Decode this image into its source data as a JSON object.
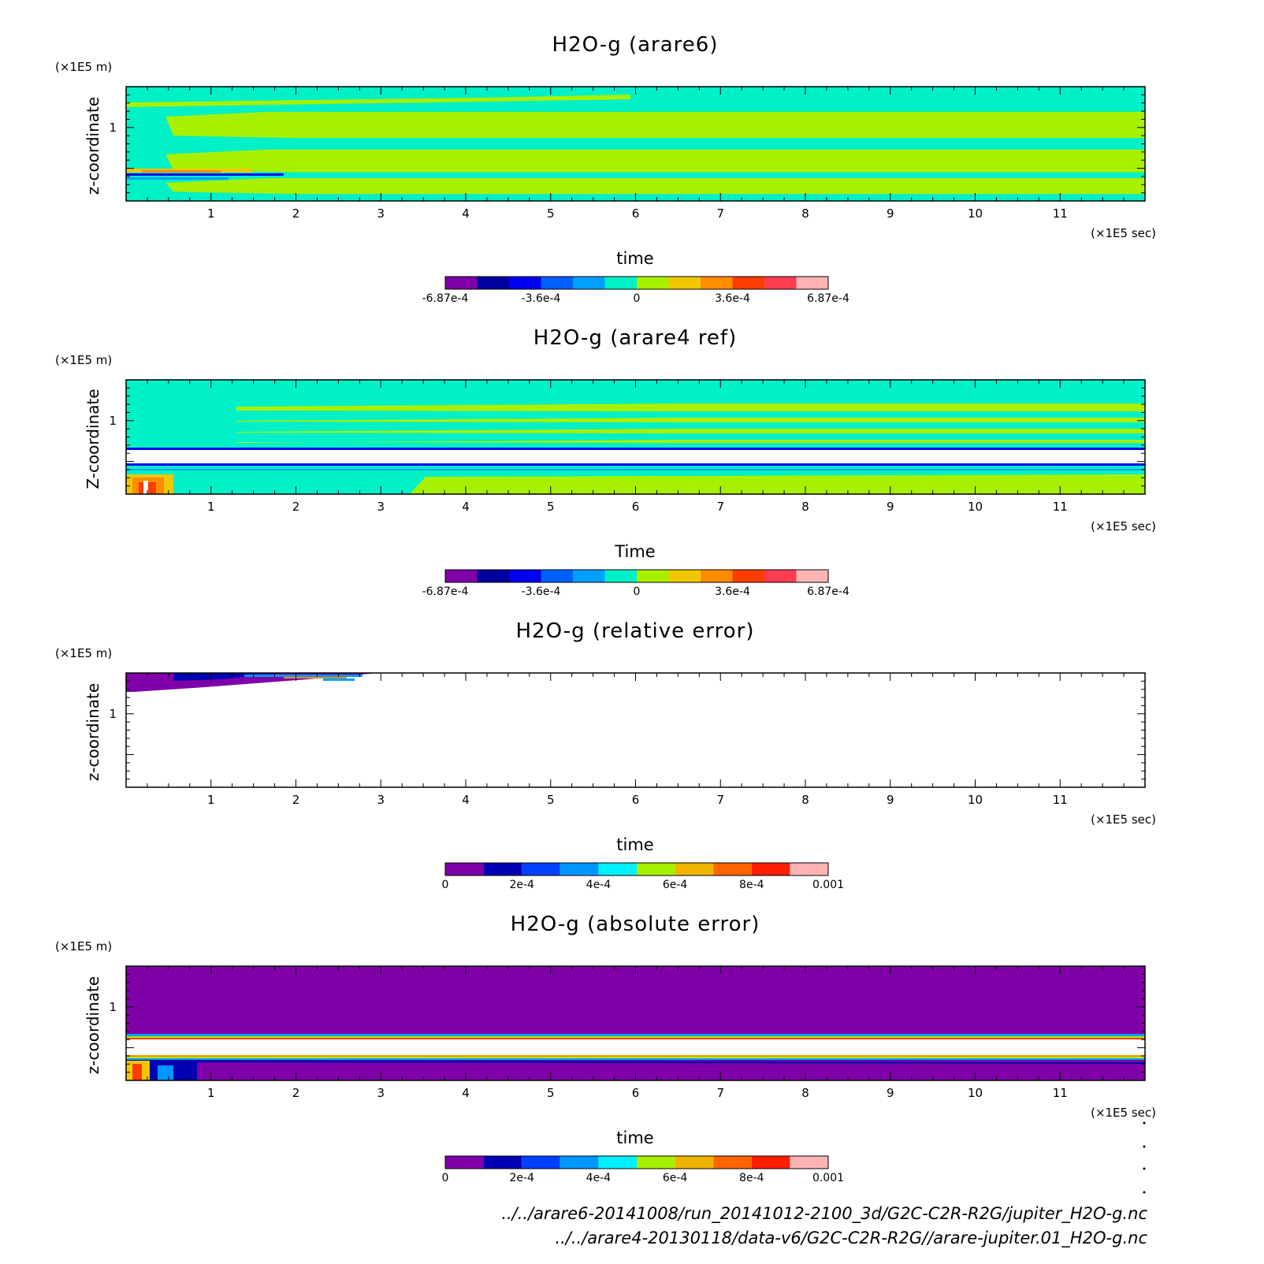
{
  "chart_data": [
    {
      "type": "heatmap",
      "title": "H2O-g (arare6)",
      "xlabel": "time",
      "ylabel": "z-coordinate",
      "x_unit": "(×1E5 sec)",
      "y_unit": "(×1E5 m)",
      "xlim": [
        0,
        12
      ],
      "x_ticks": [
        "1",
        "2",
        "3",
        "4",
        "5",
        "6",
        "7",
        "8",
        "9",
        "10",
        "11"
      ],
      "y_ticks": [
        "1"
      ],
      "colorbar": {
        "colors": [
          "#7f00a8",
          "#0000a0",
          "#0000f0",
          "#0060ff",
          "#00a0ff",
          "#00f0c8",
          "#a8f000",
          "#f0c800",
          "#ff8c00",
          "#ff3c00",
          "#ff3c50",
          "#ffb4b4"
        ],
        "tick_labels": [
          "-6.87e-4",
          "-3.6e-4",
          "0",
          "3.6e-4",
          "6.87e-4"
        ]
      },
      "bands": [
        {
          "y0": 0.78,
          "y1": 1.0,
          "color": "#00f0c8"
        },
        {
          "y0": 0.55,
          "y1": 0.78,
          "color": "#a8f000"
        },
        {
          "y0": 0.45,
          "y1": 0.55,
          "color": "#00f0c8"
        },
        {
          "y0": 0.25,
          "y1": 0.45,
          "color": "#a8f000"
        },
        {
          "y0": 0.2,
          "y1": 0.25,
          "color": "#00f0c8"
        },
        {
          "y0": 0.06,
          "y1": 0.2,
          "color": "#a8f000"
        }
      ]
    },
    {
      "type": "heatmap",
      "title": "H2O-g (arare4 ref)",
      "xlabel": "Time",
      "ylabel": "Z-coordinate",
      "x_unit": "(×1E5 sec)",
      "y_unit": "(×1E5 m)",
      "xlim": [
        0,
        12
      ],
      "x_ticks": [
        "1",
        "2",
        "3",
        "4",
        "5",
        "6",
        "7",
        "8",
        "9",
        "10",
        "11"
      ],
      "y_ticks": [
        "1"
      ],
      "colorbar": {
        "colors": [
          "#7f00a8",
          "#0000a0",
          "#0000f0",
          "#0060ff",
          "#00a0ff",
          "#00f0c8",
          "#a8f000",
          "#f0c800",
          "#ff8c00",
          "#ff3c00",
          "#ff3c50",
          "#ffb4b4"
        ],
        "tick_labels": [
          "-6.87e-4",
          "-3.6e-4",
          "0",
          "3.6e-4",
          "6.87e-4"
        ]
      }
    },
    {
      "type": "heatmap",
      "title": "H2O-g (relative error)",
      "xlabel": "time",
      "ylabel": "z-coordinate",
      "x_unit": "(×1E5 sec)",
      "y_unit": "(×1E5 m)",
      "xlim": [
        0,
        12
      ],
      "x_ticks": [
        "1",
        "2",
        "3",
        "4",
        "5",
        "6",
        "7",
        "8",
        "9",
        "10",
        "11"
      ],
      "y_ticks": [
        "1"
      ],
      "colorbar": {
        "colors": [
          "#7f00a8",
          "#0000b4",
          "#0040ff",
          "#0096ff",
          "#00f0ff",
          "#a8f000",
          "#f0b400",
          "#ff6400",
          "#ff1e00",
          "#ffb4b4"
        ],
        "tick_labels": [
          "0",
          "2e-4",
          "4e-4",
          "6e-4",
          "8e-4",
          "0.001"
        ]
      }
    },
    {
      "type": "heatmap",
      "title": "H2O-g (absolute error)",
      "xlabel": "time",
      "ylabel": "z-coordinate",
      "x_unit": "(×1E5 sec)",
      "y_unit": "(×1E5 m)",
      "xlim": [
        0,
        12
      ],
      "x_ticks": [
        "1",
        "2",
        "3",
        "4",
        "5",
        "6",
        "7",
        "8",
        "9",
        "10",
        "11"
      ],
      "y_ticks": [
        "1"
      ],
      "colorbar": {
        "colors": [
          "#7f00a8",
          "#0000b4",
          "#0040ff",
          "#0096ff",
          "#00f0ff",
          "#a8f000",
          "#f0b400",
          "#ff6400",
          "#ff1e00",
          "#ffb4b4"
        ],
        "tick_labels": [
          "0",
          "2e-4",
          "4e-4",
          "6e-4",
          "8e-4",
          "0.001"
        ]
      }
    }
  ],
  "footer": {
    "line1": "../../arare6-20141008/run_20141012-2100_3d/G2C-C2R-R2G/jupiter_H2O-g.nc",
    "line2": "../../arare4-20130118/data-v6/G2C-C2R-R2G//arare-jupiter.01_H2O-g.nc"
  }
}
